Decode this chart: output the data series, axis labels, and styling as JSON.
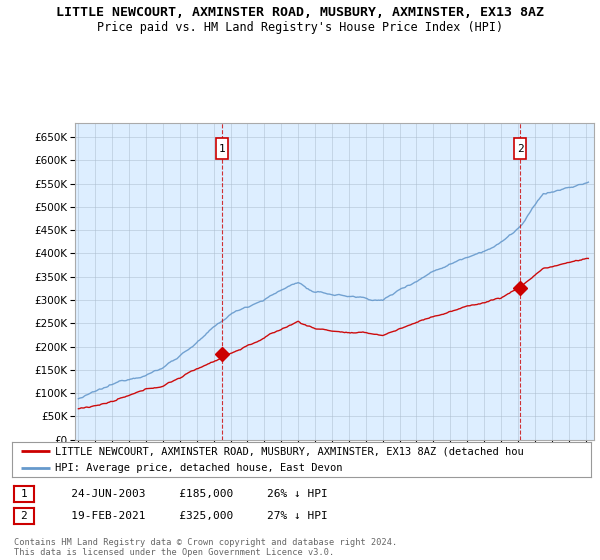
{
  "title": "LITTLE NEWCOURT, AXMINSTER ROAD, MUSBURY, AXMINSTER, EX13 8AZ",
  "subtitle": "Price paid vs. HM Land Registry's House Price Index (HPI)",
  "ylim": [
    0,
    680000
  ],
  "yticks": [
    0,
    50000,
    100000,
    150000,
    200000,
    250000,
    300000,
    350000,
    400000,
    450000,
    500000,
    550000,
    600000,
    650000
  ],
  "xlim_start": 1994.8,
  "xlim_end": 2025.5,
  "sale1_date": 2003.48,
  "sale1_price": 185000,
  "sale2_date": 2021.13,
  "sale2_price": 325000,
  "red_color": "#cc0000",
  "blue_color": "#6699cc",
  "blue_fill_color": "#ddeeff",
  "legend_label1": "LITTLE NEWCOURT, AXMINSTER ROAD, MUSBURY, AXMINSTER, EX13 8AZ (detached hou",
  "legend_label2": "HPI: Average price, detached house, East Devon",
  "table_row1": [
    "1",
    "24-JUN-2003",
    "£185,000",
    "26% ↓ HPI"
  ],
  "table_row2": [
    "2",
    "19-FEB-2021",
    "£325,000",
    "27% ↓ HPI"
  ],
  "footer": "Contains HM Land Registry data © Crown copyright and database right 2024.\nThis data is licensed under the Open Government Licence v3.0.",
  "bg_color": "#ffffff",
  "chart_bg_color": "#ddeeff",
  "grid_color": "#aabbcc",
  "title_fontsize": 9.5,
  "subtitle_fontsize": 8.5
}
